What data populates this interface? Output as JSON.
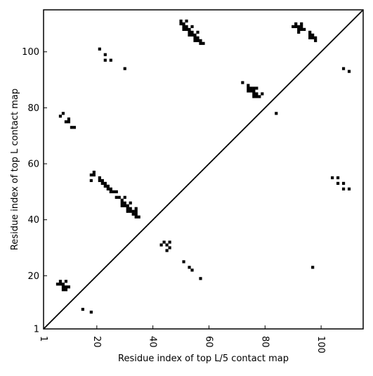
{
  "chart_data": {
    "type": "scatter",
    "title": "",
    "xlabel": "Residue index of top L/5 contact map",
    "ylabel": "Residue index of top L contact map",
    "xlim": [
      1,
      115
    ],
    "ylim": [
      1,
      115
    ],
    "x_ticks": [
      1,
      20,
      40,
      60,
      80,
      100
    ],
    "y_ticks": [
      1,
      20,
      40,
      60,
      80,
      100
    ],
    "grid": false,
    "diagonal": true,
    "marker_color": "#000000",
    "series": [
      {
        "points": [
          [
            6,
            17
          ],
          [
            7,
            17
          ],
          [
            7,
            18
          ],
          [
            8,
            17
          ],
          [
            8,
            16
          ],
          [
            8,
            15
          ],
          [
            9,
            15
          ],
          [
            9,
            16
          ],
          [
            9,
            18
          ],
          [
            10,
            16
          ],
          [
            8,
            78
          ],
          [
            7,
            77
          ],
          [
            9,
            75
          ],
          [
            10,
            75
          ],
          [
            10,
            76
          ],
          [
            11,
            73
          ],
          [
            12,
            73
          ],
          [
            15,
            8
          ],
          [
            18,
            7
          ],
          [
            18,
            54
          ],
          [
            18,
            56
          ],
          [
            19,
            56
          ],
          [
            19,
            57
          ],
          [
            21,
            55
          ],
          [
            21,
            54
          ],
          [
            22,
            54
          ],
          [
            22,
            53
          ],
          [
            23,
            53
          ],
          [
            23,
            52
          ],
          [
            24,
            52
          ],
          [
            24,
            51
          ],
          [
            25,
            51
          ],
          [
            25,
            50
          ],
          [
            26,
            50
          ],
          [
            27,
            50
          ],
          [
            27,
            48
          ],
          [
            28,
            48
          ],
          [
            29,
            47
          ],
          [
            29,
            46
          ],
          [
            29,
            45
          ],
          [
            30,
            46
          ],
          [
            30,
            45
          ],
          [
            30,
            48
          ],
          [
            31,
            45
          ],
          [
            31,
            44
          ],
          [
            31,
            43
          ],
          [
            32,
            44
          ],
          [
            32,
            43
          ],
          [
            32,
            46
          ],
          [
            33,
            43
          ],
          [
            33,
            42
          ],
          [
            34,
            42
          ],
          [
            34,
            43
          ],
          [
            34,
            44
          ],
          [
            34,
            41
          ],
          [
            35,
            41
          ],
          [
            21,
            101
          ],
          [
            23,
            99
          ],
          [
            23,
            97
          ],
          [
            25,
            97
          ],
          [
            30,
            94
          ],
          [
            43,
            31
          ],
          [
            44,
            32
          ],
          [
            45,
            31
          ],
          [
            45,
            29
          ],
          [
            46,
            30
          ],
          [
            46,
            32
          ],
          [
            51,
            25
          ],
          [
            53,
            23
          ],
          [
            54,
            22
          ],
          [
            57,
            19
          ],
          [
            50,
            111
          ],
          [
            50,
            110
          ],
          [
            51,
            110
          ],
          [
            51,
            109
          ],
          [
            51,
            108
          ],
          [
            52,
            111
          ],
          [
            52,
            109
          ],
          [
            52,
            108
          ],
          [
            53,
            108
          ],
          [
            53,
            107
          ],
          [
            53,
            106
          ],
          [
            54,
            109
          ],
          [
            54,
            107
          ],
          [
            54,
            106
          ],
          [
            55,
            106
          ],
          [
            55,
            105
          ],
          [
            55,
            104
          ],
          [
            56,
            107
          ],
          [
            56,
            105
          ],
          [
            56,
            104
          ],
          [
            57,
            104
          ],
          [
            57,
            103
          ],
          [
            58,
            103
          ],
          [
            72,
            89
          ],
          [
            74,
            88
          ],
          [
            74,
            87
          ],
          [
            74,
            86
          ],
          [
            75,
            87
          ],
          [
            75,
            86
          ],
          [
            76,
            87
          ],
          [
            76,
            86
          ],
          [
            76,
            85
          ],
          [
            76,
            84
          ],
          [
            77,
            87
          ],
          [
            77,
            85
          ],
          [
            77,
            84
          ],
          [
            78,
            84
          ],
          [
            79,
            85
          ],
          [
            84,
            78
          ],
          [
            90,
            109
          ],
          [
            91,
            110
          ],
          [
            91,
            109
          ],
          [
            92,
            109
          ],
          [
            92,
            108
          ],
          [
            92,
            107
          ],
          [
            93,
            110
          ],
          [
            93,
            109
          ],
          [
            93,
            108
          ],
          [
            94,
            108
          ],
          [
            96,
            107
          ],
          [
            96,
            106
          ],
          [
            96,
            105
          ],
          [
            97,
            106
          ],
          [
            97,
            105
          ],
          [
            98,
            105
          ],
          [
            98,
            104
          ],
          [
            97,
            23
          ],
          [
            104,
            55
          ],
          [
            106,
            55
          ],
          [
            106,
            53
          ],
          [
            108,
            53
          ],
          [
            108,
            51
          ],
          [
            110,
            51
          ],
          [
            108,
            94
          ],
          [
            110,
            93
          ]
        ]
      }
    ]
  }
}
